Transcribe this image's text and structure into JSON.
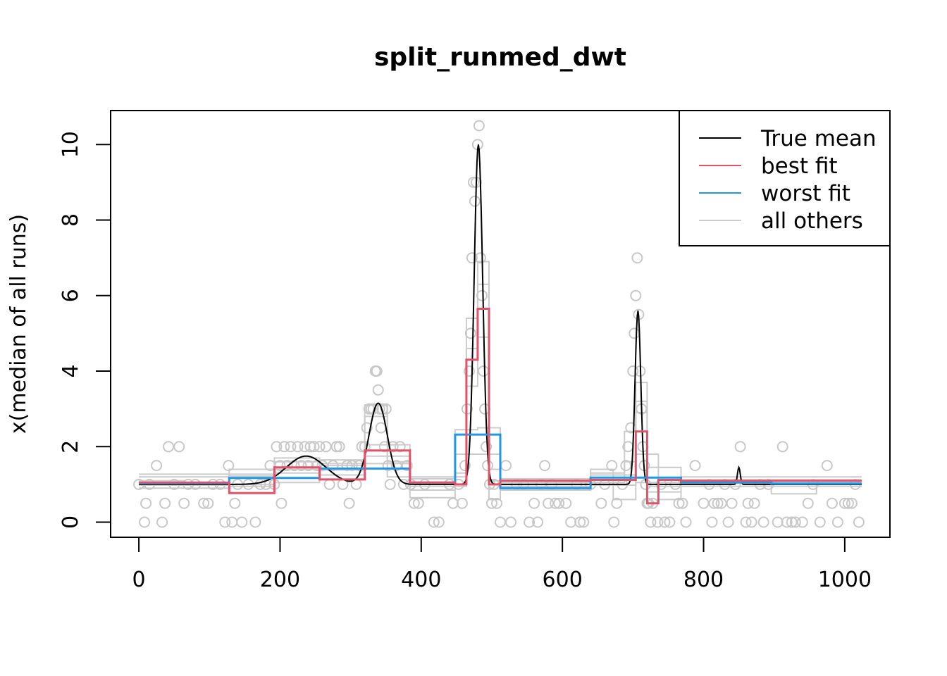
{
  "chart_data": {
    "type": "line",
    "title": "split_runmed_dwt",
    "xlabel": "",
    "ylabel": "x(median of all runs)",
    "xlim": [
      -40,
      1064
    ],
    "ylim": [
      -0.4,
      10.9
    ],
    "xticks": [
      0,
      200,
      400,
      600,
      800,
      1000
    ],
    "yticks": [
      0,
      2,
      4,
      6,
      8,
      10
    ],
    "legend": {
      "position": "top-right",
      "entries": [
        {
          "label": "True mean",
          "color": "#000000"
        },
        {
          "label": "best fit",
          "color": "#DF536B"
        },
        {
          "label": "worst fit",
          "color": "#2297E6"
        },
        {
          "label": "all others",
          "color": "#CCCCCC"
        }
      ]
    },
    "true_mean": {
      "name": "True mean",
      "color": "#000000",
      "baseline": 1,
      "bumps": [
        {
          "center": 237,
          "height": 0.75,
          "width": 28
        },
        {
          "center": 339,
          "height": 2.15,
          "width": 13
        },
        {
          "center": 481,
          "height": 9.0,
          "width": 6
        },
        {
          "center": 707,
          "height": 4.6,
          "width": 4
        },
        {
          "center": 850,
          "height": 0.45,
          "width": 2
        }
      ]
    },
    "best_fit": {
      "name": "best fit",
      "color": "#DF536B",
      "steps": [
        {
          "x0": 0,
          "x1": 128,
          "y": 1.05
        },
        {
          "x0": 128,
          "x1": 192,
          "y": 0.77
        },
        {
          "x0": 192,
          "x1": 256,
          "y": 1.45
        },
        {
          "x0": 256,
          "x1": 320,
          "y": 1.13
        },
        {
          "x0": 320,
          "x1": 384,
          "y": 1.9
        },
        {
          "x0": 384,
          "x1": 448,
          "y": 1.05
        },
        {
          "x0": 448,
          "x1": 464,
          "y": 1.0
        },
        {
          "x0": 464,
          "x1": 480,
          "y": 4.3
        },
        {
          "x0": 480,
          "x1": 496,
          "y": 5.65
        },
        {
          "x0": 496,
          "x1": 512,
          "y": 1.0
        },
        {
          "x0": 512,
          "x1": 640,
          "y": 1.1
        },
        {
          "x0": 640,
          "x1": 704,
          "y": 1.12
        },
        {
          "x0": 704,
          "x1": 720,
          "y": 2.4
        },
        {
          "x0": 720,
          "x1": 736,
          "y": 0.5
        },
        {
          "x0": 736,
          "x1": 768,
          "y": 1.12
        },
        {
          "x0": 768,
          "x1": 1024,
          "y": 1.1
        }
      ]
    },
    "worst_fit": {
      "name": "worst fit",
      "color": "#2297E6",
      "steps": [
        {
          "x0": 0,
          "x1": 128,
          "y": 1.03
        },
        {
          "x0": 128,
          "x1": 256,
          "y": 1.17
        },
        {
          "x0": 256,
          "x1": 384,
          "y": 1.42
        },
        {
          "x0": 384,
          "x1": 448,
          "y": 1.05
        },
        {
          "x0": 448,
          "x1": 512,
          "y": 2.32
        },
        {
          "x0": 512,
          "x1": 640,
          "y": 0.9
        },
        {
          "x0": 640,
          "x1": 768,
          "y": 1.18
        },
        {
          "x0": 768,
          "x1": 896,
          "y": 1.05
        },
        {
          "x0": 896,
          "x1": 1024,
          "y": 1.02
        }
      ]
    },
    "all_others": {
      "name": "all others",
      "color": "#CCCCCC",
      "runs": [
        [
          {
            "x0": 0,
            "x1": 64,
            "y": 1.1
          },
          {
            "x0": 64,
            "x1": 192,
            "y": 1.0
          },
          {
            "x0": 192,
            "x1": 256,
            "y": 1.6
          },
          {
            "x0": 256,
            "x1": 320,
            "y": 1.25
          },
          {
            "x0": 320,
            "x1": 352,
            "y": 2.8
          },
          {
            "x0": 352,
            "x1": 384,
            "y": 1.6
          },
          {
            "x0": 384,
            "x1": 448,
            "y": 0.85
          },
          {
            "x0": 448,
            "x1": 464,
            "y": 1.3
          },
          {
            "x0": 464,
            "x1": 480,
            "y": 5.4
          },
          {
            "x0": 480,
            "x1": 496,
            "y": 6.9
          },
          {
            "x0": 496,
            "x1": 512,
            "y": 1.4
          },
          {
            "x0": 512,
            "x1": 640,
            "y": 0.95
          },
          {
            "x0": 640,
            "x1": 688,
            "y": 1.3
          },
          {
            "x0": 688,
            "x1": 704,
            "y": 2.4
          },
          {
            "x0": 704,
            "x1": 720,
            "y": 3.7
          },
          {
            "x0": 720,
            "x1": 768,
            "y": 0.8
          },
          {
            "x0": 768,
            "x1": 896,
            "y": 1.1
          },
          {
            "x0": 896,
            "x1": 960,
            "y": 0.75
          },
          {
            "x0": 960,
            "x1": 1024,
            "y": 1.0
          }
        ],
        [
          {
            "x0": 0,
            "x1": 128,
            "y": 1.2
          },
          {
            "x0": 128,
            "x1": 192,
            "y": 0.95
          },
          {
            "x0": 192,
            "x1": 256,
            "y": 1.3
          },
          {
            "x0": 256,
            "x1": 320,
            "y": 1.55
          },
          {
            "x0": 320,
            "x1": 384,
            "y": 1.75
          },
          {
            "x0": 384,
            "x1": 448,
            "y": 0.65
          },
          {
            "x0": 448,
            "x1": 480,
            "y": 2.45
          },
          {
            "x0": 480,
            "x1": 512,
            "y": 2.5
          },
          {
            "x0": 512,
            "x1": 640,
            "y": 1.15
          },
          {
            "x0": 640,
            "x1": 672,
            "y": 1.4
          },
          {
            "x0": 672,
            "x1": 704,
            "y": 0.6
          },
          {
            "x0": 704,
            "x1": 736,
            "y": 1.8
          },
          {
            "x0": 736,
            "x1": 768,
            "y": 0.6
          },
          {
            "x0": 768,
            "x1": 1024,
            "y": 1.2
          }
        ],
        [
          {
            "x0": 0,
            "x1": 128,
            "y": 0.9
          },
          {
            "x0": 128,
            "x1": 256,
            "y": 1.4
          },
          {
            "x0": 256,
            "x1": 320,
            "y": 1.65
          },
          {
            "x0": 320,
            "x1": 352,
            "y": 3.1
          },
          {
            "x0": 352,
            "x1": 384,
            "y": 1.2
          },
          {
            "x0": 384,
            "x1": 464,
            "y": 0.95
          },
          {
            "x0": 464,
            "x1": 480,
            "y": 3.6
          },
          {
            "x0": 480,
            "x1": 496,
            "y": 4.9
          },
          {
            "x0": 496,
            "x1": 512,
            "y": 0.6
          },
          {
            "x0": 512,
            "x1": 640,
            "y": 1.05
          },
          {
            "x0": 640,
            "x1": 704,
            "y": 0.98
          },
          {
            "x0": 704,
            "x1": 720,
            "y": 2.9
          },
          {
            "x0": 720,
            "x1": 768,
            "y": 1.45
          },
          {
            "x0": 768,
            "x1": 1024,
            "y": 0.95
          }
        ],
        [
          {
            "x0": 0,
            "x1": 192,
            "y": 1.27
          },
          {
            "x0": 192,
            "x1": 256,
            "y": 1.7
          },
          {
            "x0": 256,
            "x1": 320,
            "y": 1.38
          },
          {
            "x0": 320,
            "x1": 384,
            "y": 2.05
          },
          {
            "x0": 384,
            "x1": 448,
            "y": 1.15
          },
          {
            "x0": 448,
            "x1": 512,
            "y": 1.8
          },
          {
            "x0": 512,
            "x1": 640,
            "y": 0.85
          },
          {
            "x0": 640,
            "x1": 704,
            "y": 1.25
          },
          {
            "x0": 704,
            "x1": 768,
            "y": 1.05
          },
          {
            "x0": 768,
            "x1": 1024,
            "y": 1.05
          }
        ],
        [
          {
            "x0": 0,
            "x1": 128,
            "y": 0.98
          },
          {
            "x0": 128,
            "x1": 192,
            "y": 1.22
          },
          {
            "x0": 192,
            "x1": 256,
            "y": 1.05
          },
          {
            "x0": 256,
            "x1": 320,
            "y": 1.5
          },
          {
            "x0": 320,
            "x1": 384,
            "y": 1.55
          },
          {
            "x0": 384,
            "x1": 464,
            "y": 1.2
          },
          {
            "x0": 464,
            "x1": 480,
            "y": 4.6
          },
          {
            "x0": 480,
            "x1": 496,
            "y": 6.3
          },
          {
            "x0": 496,
            "x1": 512,
            "y": 1.1
          },
          {
            "x0": 512,
            "x1": 640,
            "y": 1.0
          },
          {
            "x0": 640,
            "x1": 688,
            "y": 1.05
          },
          {
            "x0": 688,
            "x1": 704,
            "y": 1.6
          },
          {
            "x0": 704,
            "x1": 720,
            "y": 3.2
          },
          {
            "x0": 720,
            "x1": 768,
            "y": 0.95
          },
          {
            "x0": 768,
            "x1": 1024,
            "y": 1.12
          }
        ]
      ]
    },
    "observations": [
      [
        0,
        1
      ],
      [
        8,
        0
      ],
      [
        10,
        0.5
      ],
      [
        15,
        1
      ],
      [
        25,
        1.5
      ],
      [
        33,
        0
      ],
      [
        37,
        0.5
      ],
      [
        42,
        2
      ],
      [
        50,
        1
      ],
      [
        57,
        2
      ],
      [
        64,
        0.5
      ],
      [
        70,
        1
      ],
      [
        80,
        1
      ],
      [
        92,
        0.5
      ],
      [
        98,
        0.5
      ],
      [
        105,
        1
      ],
      [
        115,
        1
      ],
      [
        122,
        0
      ],
      [
        127,
        1.5
      ],
      [
        132,
        0
      ],
      [
        136,
        0.5
      ],
      [
        140,
        1
      ],
      [
        146,
        0
      ],
      [
        155,
        1
      ],
      [
        165,
        0
      ],
      [
        172,
        1
      ],
      [
        180,
        1
      ],
      [
        186,
        1.5
      ],
      [
        192,
        1
      ],
      [
        195,
        2
      ],
      [
        200,
        1.5
      ],
      [
        202,
        0.5
      ],
      [
        206,
        2
      ],
      [
        210,
        1.5
      ],
      [
        215,
        2
      ],
      [
        220,
        1.5
      ],
      [
        225,
        2
      ],
      [
        230,
        1.5
      ],
      [
        235,
        2
      ],
      [
        240,
        1.5
      ],
      [
        243,
        2
      ],
      [
        248,
        2
      ],
      [
        252,
        1.5
      ],
      [
        256,
        2
      ],
      [
        260,
        1.5
      ],
      [
        265,
        2
      ],
      [
        270,
        1
      ],
      [
        275,
        1.5
      ],
      [
        280,
        2
      ],
      [
        284,
        2
      ],
      [
        289,
        1
      ],
      [
        295,
        1.5
      ],
      [
        298,
        0.5
      ],
      [
        302,
        1.5
      ],
      [
        308,
        1
      ],
      [
        312,
        1.5
      ],
      [
        316,
        2
      ],
      [
        320,
        2
      ],
      [
        323,
        2.5
      ],
      [
        326,
        3
      ],
      [
        329,
        3
      ],
      [
        332,
        3
      ],
      [
        335,
        4
      ],
      [
        337,
        4
      ],
      [
        339,
        3.5
      ],
      [
        341,
        3
      ],
      [
        343,
        2.5
      ],
      [
        345,
        3
      ],
      [
        348,
        2
      ],
      [
        350,
        3
      ],
      [
        353,
        1.5
      ],
      [
        356,
        1
      ],
      [
        360,
        2
      ],
      [
        365,
        1.5
      ],
      [
        370,
        2
      ],
      [
        375,
        1
      ],
      [
        380,
        1.5
      ],
      [
        385,
        1
      ],
      [
        390,
        0.5
      ],
      [
        396,
        0.5
      ],
      [
        405,
        1
      ],
      [
        418,
        0
      ],
      [
        425,
        0
      ],
      [
        440,
        1
      ],
      [
        445,
        0.5
      ],
      [
        453,
        1
      ],
      [
        458,
        0.5
      ],
      [
        462,
        1.5
      ],
      [
        465,
        3
      ],
      [
        468,
        4
      ],
      [
        470,
        5
      ],
      [
        472,
        7
      ],
      [
        474,
        9
      ],
      [
        476,
        8.5
      ],
      [
        478,
        9
      ],
      [
        480,
        10
      ],
      [
        482,
        10.5
      ],
      [
        484,
        7
      ],
      [
        486,
        6
      ],
      [
        488,
        4
      ],
      [
        490,
        3
      ],
      [
        492,
        2
      ],
      [
        494,
        1.5
      ],
      [
        497,
        1
      ],
      [
        500,
        0.5
      ],
      [
        503,
        1
      ],
      [
        507,
        0.5
      ],
      [
        512,
        0
      ],
      [
        520,
        1.5
      ],
      [
        527,
        0
      ],
      [
        535,
        1
      ],
      [
        545,
        1
      ],
      [
        553,
        0
      ],
      [
        560,
        0.5
      ],
      [
        565,
        0
      ],
      [
        570,
        1
      ],
      [
        575,
        1.5
      ],
      [
        580,
        0.5
      ],
      [
        585,
        1
      ],
      [
        590,
        0.5
      ],
      [
        595,
        0.5
      ],
      [
        605,
        0.5
      ],
      [
        612,
        0
      ],
      [
        620,
        1
      ],
      [
        625,
        0
      ],
      [
        630,
        0
      ],
      [
        640,
        1
      ],
      [
        655,
        0.5
      ],
      [
        660,
        1
      ],
      [
        670,
        1.5
      ],
      [
        673,
        0
      ],
      [
        677,
        0.5
      ],
      [
        685,
        1
      ],
      [
        690,
        1.5
      ],
      [
        693,
        2
      ],
      [
        697,
        2.5
      ],
      [
        700,
        4
      ],
      [
        702,
        5
      ],
      [
        704,
        6
      ],
      [
        706,
        7
      ],
      [
        708,
        5.5
      ],
      [
        710,
        4
      ],
      [
        712,
        3
      ],
      [
        714,
        2
      ],
      [
        716,
        1.5
      ],
      [
        718,
        1
      ],
      [
        720,
        0.5
      ],
      [
        722,
        0.5
      ],
      [
        725,
        0
      ],
      [
        728,
        0.5
      ],
      [
        735,
        0
      ],
      [
        740,
        1
      ],
      [
        745,
        0
      ],
      [
        752,
        0
      ],
      [
        760,
        1
      ],
      [
        765,
        0.5
      ],
      [
        770,
        0.5
      ],
      [
        775,
        0
      ],
      [
        788,
        1.5
      ],
      [
        800,
        0.5
      ],
      [
        808,
        1
      ],
      [
        812,
        0
      ],
      [
        815,
        0.5
      ],
      [
        820,
        0.5
      ],
      [
        825,
        0.5
      ],
      [
        830,
        1
      ],
      [
        835,
        0
      ],
      [
        840,
        0.5
      ],
      [
        845,
        1
      ],
      [
        852,
        2
      ],
      [
        860,
        0
      ],
      [
        863,
        0.5
      ],
      [
        868,
        0
      ],
      [
        872,
        0.5
      ],
      [
        880,
        1
      ],
      [
        885,
        0
      ],
      [
        892,
        1
      ],
      [
        905,
        0
      ],
      [
        912,
        2
      ],
      [
        918,
        0
      ],
      [
        925,
        0
      ],
      [
        930,
        0
      ],
      [
        940,
        0
      ],
      [
        948,
        0.5
      ],
      [
        955,
        1
      ],
      [
        965,
        0
      ],
      [
        975,
        1.5
      ],
      [
        982,
        0.5
      ],
      [
        990,
        0
      ],
      [
        1000,
        0.5
      ],
      [
        1005,
        0.5
      ],
      [
        1010,
        0.5
      ],
      [
        1015,
        1
      ],
      [
        1020,
        0
      ]
    ]
  }
}
